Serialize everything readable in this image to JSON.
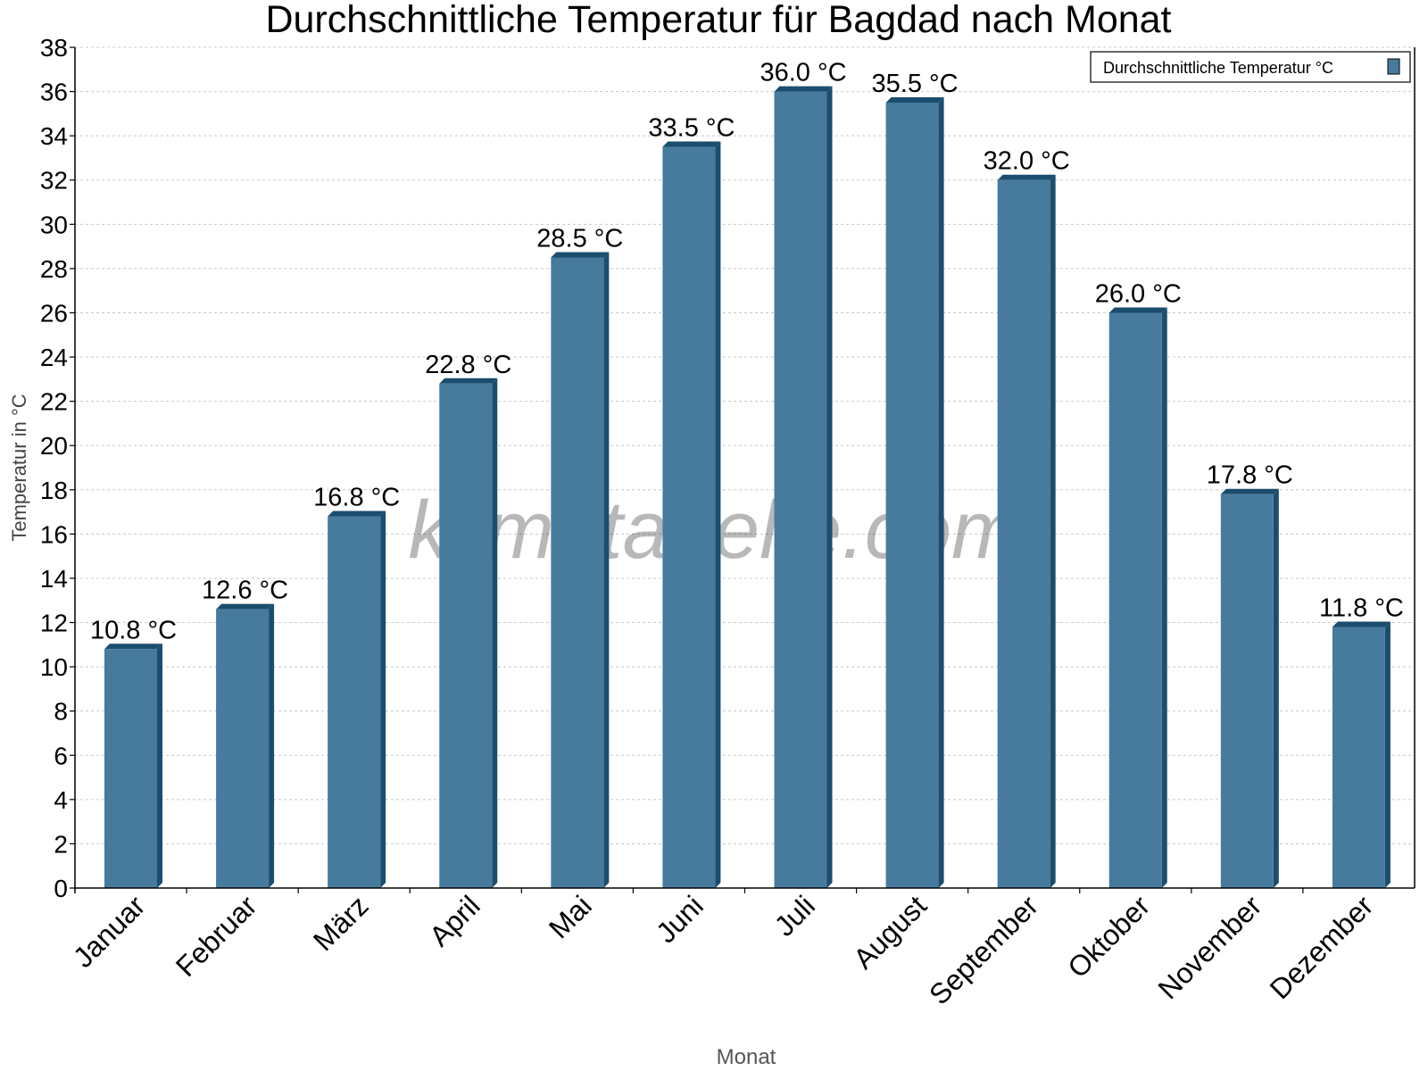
{
  "chart_data": {
    "type": "bar",
    "title": "Durchschnittliche Temperatur für Bagdad nach Monat",
    "xlabel": "Monat",
    "ylabel": "Temperatur in °C",
    "categories": [
      "Januar",
      "Februar",
      "März",
      "April",
      "Mai",
      "Juni",
      "Juli",
      "August",
      "September",
      "Oktober",
      "November",
      "Dezember"
    ],
    "series": [
      {
        "name": "Durchschnittliche Temperatur °C",
        "values": [
          10.8,
          12.6,
          16.8,
          22.8,
          28.5,
          33.5,
          36.0,
          35.5,
          32.0,
          26.0,
          17.8,
          11.8
        ],
        "labels": [
          "10.8 °C",
          "12.6 °C",
          "16.8 °C",
          "22.8 °C",
          "28.5 °C",
          "33.5 °C",
          "36.0 °C",
          "35.5 °C",
          "32.0 °C",
          "26.0 °C",
          "17.8 °C",
          "11.8 °C"
        ]
      }
    ],
    "ylim": [
      0,
      38
    ],
    "yticks": [
      "0",
      "2",
      "4",
      "6",
      "8",
      "10",
      "12",
      "14",
      "16",
      "18",
      "20",
      "22",
      "24",
      "26",
      "28",
      "30",
      "32",
      "34",
      "36",
      "38"
    ],
    "grid": true,
    "legend": "top-right",
    "watermark": "klimatabelle.com",
    "colors": {
      "bar": "#467b9d",
      "bar_side": "#1b4d6e",
      "grid": "#c8c8c8"
    }
  }
}
